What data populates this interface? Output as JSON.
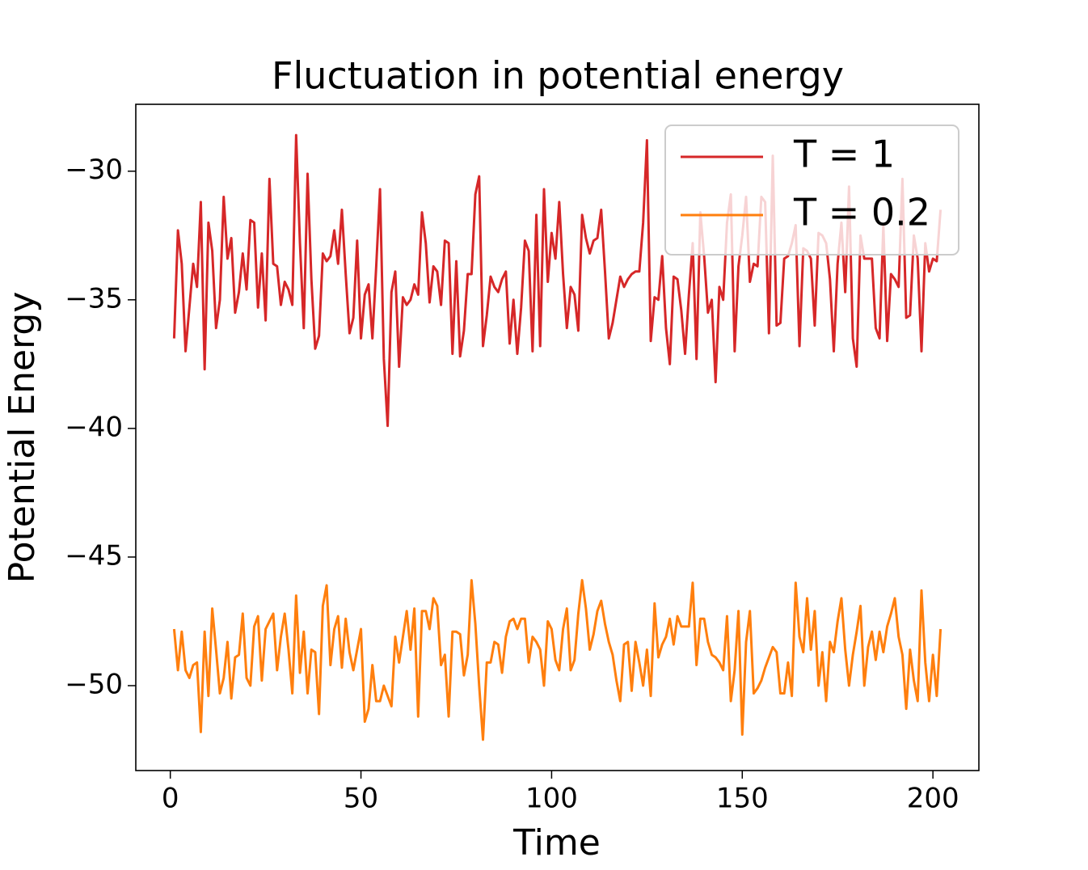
{
  "chart_data": {
    "type": "line",
    "title": "Fluctuation in potential energy",
    "xlabel": "Time",
    "ylabel": "Potential Energy",
    "xlim": [
      -9.05,
      212.05
    ],
    "ylim": [
      -53.3,
      -27.4
    ],
    "xticks": [
      0,
      50,
      100,
      150,
      200
    ],
    "yticks": [
      {
        "value": -50,
        "label": "−50"
      },
      {
        "value": -45,
        "label": "−45"
      },
      {
        "value": -40,
        "label": "−40"
      },
      {
        "value": -35,
        "label": "−35"
      },
      {
        "value": -30,
        "label": "−30"
      }
    ],
    "grid": false,
    "legend": "upper right",
    "x": [
      1,
      2,
      3,
      4,
      5,
      6,
      7,
      8,
      9,
      10,
      11,
      12,
      13,
      14,
      15,
      16,
      17,
      18,
      19,
      20,
      21,
      22,
      23,
      24,
      25,
      26,
      27,
      28,
      29,
      30,
      31,
      32,
      33,
      34,
      35,
      36,
      37,
      38,
      39,
      40,
      41,
      42,
      43,
      44,
      45,
      46,
      47,
      48,
      49,
      50,
      51,
      52,
      53,
      54,
      55,
      56,
      57,
      58,
      59,
      60,
      61,
      62,
      63,
      64,
      65,
      66,
      67,
      68,
      69,
      70,
      71,
      72,
      73,
      74,
      75,
      76,
      77,
      78,
      79,
      80,
      81,
      82,
      83,
      84,
      85,
      86,
      87,
      88,
      89,
      90,
      91,
      92,
      93,
      94,
      95,
      96,
      97,
      98,
      99,
      100,
      101,
      102,
      103,
      104,
      105,
      106,
      107,
      108,
      109,
      110,
      111,
      112,
      113,
      114,
      115,
      116,
      117,
      118,
      119,
      120,
      121,
      122,
      123,
      124,
      125,
      126,
      127,
      128,
      129,
      130,
      131,
      132,
      133,
      134,
      135,
      136,
      137,
      138,
      139,
      140,
      141,
      142,
      143,
      144,
      145,
      146,
      147,
      148,
      149,
      150,
      151,
      152,
      153,
      154,
      155,
      156,
      157,
      158,
      159,
      160,
      161,
      162,
      163,
      164,
      165,
      166,
      167,
      168,
      169,
      170,
      171,
      172,
      173,
      174,
      175,
      176,
      177,
      178,
      179,
      180,
      181,
      182,
      183,
      184,
      185,
      186,
      187,
      188,
      189,
      190,
      191,
      192,
      193,
      194,
      195,
      196,
      197,
      198,
      199,
      200,
      201,
      202
    ],
    "series": [
      {
        "name": "T = 1",
        "color": "#d62728",
        "values": [
          -36.5,
          -32.3,
          -33.6,
          -37.0,
          -35.3,
          -33.6,
          -34.5,
          -31.2,
          -37.7,
          -32.0,
          -33.1,
          -36.1,
          -35.0,
          -31.0,
          -33.4,
          -32.6,
          -35.5,
          -34.7,
          -33.2,
          -34.6,
          -31.9,
          -32.0,
          -35.3,
          -33.2,
          -35.8,
          -30.3,
          -33.6,
          -33.7,
          -35.2,
          -34.3,
          -34.6,
          -35.2,
          -28.6,
          -32.8,
          -36.1,
          -30.1,
          -34.2,
          -36.9,
          -36.4,
          -33.2,
          -33.5,
          -33.3,
          -32.3,
          -33.6,
          -31.5,
          -34.0,
          -36.3,
          -35.7,
          -32.7,
          -36.5,
          -34.8,
          -34.4,
          -36.5,
          -33.7,
          -30.7,
          -37.3,
          -39.9,
          -34.7,
          -33.9,
          -37.6,
          -34.9,
          -35.2,
          -35.0,
          -34.4,
          -34.8,
          -31.6,
          -32.8,
          -35.1,
          -33.7,
          -33.9,
          -35.2,
          -32.7,
          -32.8,
          -37.1,
          -33.5,
          -37.2,
          -36.2,
          -34.0,
          -34.0,
          -30.9,
          -30.2,
          -36.8,
          -35.6,
          -34.1,
          -34.5,
          -34.7,
          -34.2,
          -33.9,
          -36.7,
          -35.0,
          -37.1,
          -35.3,
          -32.7,
          -33.1,
          -37.0,
          -31.7,
          -36.8,
          -30.7,
          -34.3,
          -32.4,
          -33.4,
          -31.2,
          -34.0,
          -36.1,
          -34.5,
          -34.8,
          -36.2,
          -31.7,
          -32.6,
          -33.2,
          -32.7,
          -32.6,
          -31.5,
          -33.9,
          -36.5,
          -35.9,
          -35.0,
          -34.1,
          -34.5,
          -34.2,
          -34.0,
          -33.9,
          -33.9,
          -32.0,
          -28.8,
          -36.6,
          -34.9,
          -35.0,
          -33.3,
          -36.1,
          -37.5,
          -34.1,
          -34.2,
          -35.4,
          -37.1,
          -34.8,
          -32.8,
          -37.3,
          -31.6,
          -33.3,
          -35.5,
          -35.0,
          -38.2,
          -34.5,
          -35.0,
          -32.0,
          -30.9,
          -37.0,
          -33.7,
          -32.5,
          -31.0,
          -34.3,
          -33.6,
          -33.7,
          -31.0,
          -31.2,
          -36.3,
          -29.4,
          -36.0,
          -35.9,
          -33.4,
          -33.3,
          -32.8,
          -32.1,
          -36.8,
          -33.0,
          -33.1,
          -33.4,
          -36.0,
          -32.4,
          -32.5,
          -32.8,
          -34.2,
          -37.0,
          -33.6,
          -32.0,
          -34.7,
          -30.6,
          -36.5,
          -37.6,
          -32.5,
          -33.4,
          -33.4,
          -33.4,
          -36.1,
          -36.5,
          -32.1,
          -36.6,
          -34.0,
          -34.2,
          -34.5,
          -30.3,
          -35.7,
          -35.6,
          -32.5,
          -33.4,
          -37.0,
          -32.8,
          -33.9,
          -33.4,
          -33.5,
          -31.5
        ]
      },
      {
        "name": "T = 0.2",
        "color": "#ff7f0e",
        "values": [
          -47.8,
          -49.4,
          -47.9,
          -49.4,
          -49.7,
          -49.2,
          -49.1,
          -51.8,
          -47.9,
          -50.4,
          -47.0,
          -48.6,
          -50.3,
          -49.7,
          -48.3,
          -50.5,
          -48.9,
          -48.8,
          -47.2,
          -49.7,
          -50.0,
          -47.7,
          -47.3,
          -49.8,
          -47.8,
          -47.5,
          -47.2,
          -49.4,
          -48.1,
          -47.2,
          -48.6,
          -50.3,
          -46.5,
          -49.5,
          -47.9,
          -50.3,
          -48.6,
          -48.7,
          -51.1,
          -46.9,
          -46.1,
          -49.2,
          -47.8,
          -47.3,
          -49.3,
          -47.4,
          -48.7,
          -49.4,
          -48.6,
          -47.8,
          -51.4,
          -50.9,
          -49.2,
          -50.6,
          -50.6,
          -50.0,
          -50.4,
          -50.8,
          -48.1,
          -49.1,
          -48.1,
          -47.1,
          -48.6,
          -47.0,
          -51.2,
          -47.1,
          -47.1,
          -47.8,
          -46.6,
          -46.9,
          -49.2,
          -48.8,
          -51.2,
          -47.9,
          -47.9,
          -48.0,
          -49.6,
          -48.8,
          -45.9,
          -47.6,
          -50.0,
          -52.1,
          -49.1,
          -49.1,
          -48.3,
          -48.4,
          -49.5,
          -48.1,
          -47.5,
          -47.4,
          -47.8,
          -47.4,
          -47.4,
          -49.1,
          -48.1,
          -48.3,
          -48.6,
          -50.0,
          -47.5,
          -47.8,
          -49.0,
          -49.4,
          -47.8,
          -47.0,
          -49.4,
          -49.0,
          -47.2,
          -45.9,
          -47.0,
          -48.6,
          -48.0,
          -47.1,
          -46.7,
          -47.6,
          -48.3,
          -48.8,
          -49.8,
          -50.6,
          -48.4,
          -48.3,
          -50.2,
          -48.3,
          -49.1,
          -50.0,
          -48.6,
          -50.4,
          -46.8,
          -48.9,
          -48.4,
          -48.1,
          -47.4,
          -48.4,
          -47.3,
          -47.7,
          -47.7,
          -47.7,
          -46.0,
          -49.2,
          -47.4,
          -47.4,
          -48.3,
          -48.8,
          -48.9,
          -49.1,
          -49.4,
          -47.3,
          -50.6,
          -49.4,
          -47.1,
          -51.9,
          -48.3,
          -47.1,
          -50.3,
          -50.1,
          -49.8,
          -49.3,
          -48.9,
          -48.5,
          -48.7,
          -50.3,
          -50.3,
          -49.1,
          -50.4,
          -46.0,
          -48.1,
          -48.7,
          -46.6,
          -48.6,
          -47.1,
          -50.0,
          -48.7,
          -50.6,
          -48.3,
          -48.7,
          -47.5,
          -46.6,
          -48.6,
          -50.0,
          -48.8,
          -47.9,
          -46.9,
          -50.0,
          -48.5,
          -47.9,
          -49.0,
          -47.9,
          -48.7,
          -47.7,
          -47.2,
          -46.6,
          -48.1,
          -48.8,
          -50.9,
          -48.6,
          -49.8,
          -50.6,
          -46.3,
          -49.1,
          -50.6,
          -48.8,
          -50.4,
          -47.8
        ]
      }
    ]
  }
}
